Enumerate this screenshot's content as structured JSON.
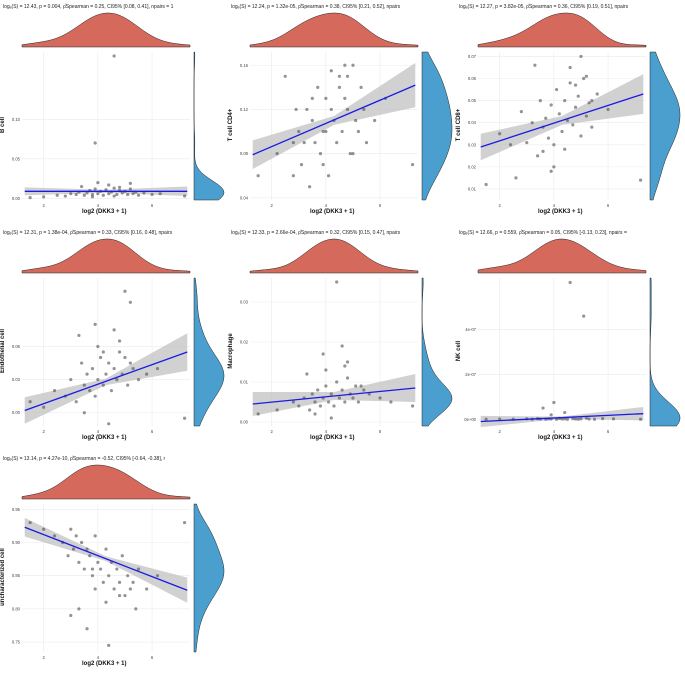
{
  "colors": {
    "density_top": "#d5695c",
    "density_right": "#4a9fcf",
    "regression_line": "#1a1ae6",
    "ci_band": "#bdbdbd",
    "points": "#4d4d4d",
    "grid": "#ebebeb"
  },
  "chart_data": [
    {
      "type": "scatter",
      "title": "logₑ(S) = 12.43, p = 0.004, ρ̂Spearman = 0.25, CI95% [0.08, 0.41], npairs = 1",
      "xlabel": "log2 (DKK3 + 1)",
      "ylabel": "B cell",
      "xlim": [
        1.2,
        7.4
      ],
      "ylim": [
        -0.002,
        0.185
      ],
      "xticks": [
        "2",
        "4",
        "6"
      ],
      "xtick_values": [
        2,
        4,
        6
      ],
      "yticks": [
        "0.00",
        "0.05",
        "0.10"
      ],
      "ytick_values": [
        0,
        0.05,
        0.1
      ],
      "fit": {
        "x": [
          1.3,
          7.3
        ],
        "y": [
          0.009,
          0.009
        ]
      },
      "band": {
        "x": [
          1.3,
          4.3,
          7.3
        ],
        "upper": [
          0.014,
          0.011,
          0.015
        ],
        "lower": [
          0.004,
          0.007,
          0.003
        ]
      },
      "points": {
        "x": [
          4.6,
          3.9,
          1.5,
          2.0,
          2.5,
          2.8,
          3.0,
          3.2,
          3.3,
          3.5,
          3.6,
          3.7,
          3.8,
          3.9,
          4.0,
          4.1,
          4.2,
          4.3,
          4.4,
          4.5,
          4.6,
          4.7,
          4.8,
          4.9,
          5.0,
          5.1,
          5.2,
          5.3,
          5.4,
          5.5,
          5.7,
          6.0,
          6.3,
          7.2,
          3.4,
          4.0,
          4.4,
          4.8,
          5.2,
          3.8,
          4.6
        ],
        "y": [
          0.18,
          0.07,
          0.001,
          0.002,
          0.004,
          0.003,
          0.006,
          0.005,
          0.008,
          0.004,
          0.007,
          0.01,
          0.005,
          0.012,
          0.006,
          0.009,
          0.004,
          0.011,
          0.006,
          0.008,
          0.013,
          0.005,
          0.01,
          0.007,
          0.009,
          0.005,
          0.012,
          0.006,
          0.008,
          0.004,
          0.007,
          0.005,
          0.006,
          0.003,
          0.015,
          0.02,
          0.017,
          0.014,
          0.019,
          0.002,
          0.003
        ]
      }
    },
    {
      "type": "scatter",
      "title": "logₑ(S) = 12.24, p = 1.32e-05, ρ̂Spearman = 0.38, CI95% [0.21, 0.52], npairs",
      "xlabel": "log2 (DKK3 + 1)",
      "ylabel": "T cell CD4+",
      "xlim": [
        1.2,
        7.4
      ],
      "ylim": [
        0.038,
        0.172
      ],
      "xticks": [
        "2",
        "4",
        "6"
      ],
      "xtick_values": [
        2,
        4,
        6
      ],
      "yticks": [
        "0.04",
        "0.08",
        "0.12",
        "0.16"
      ],
      "ytick_values": [
        0.04,
        0.08,
        0.12,
        0.16
      ],
      "fit": {
        "x": [
          1.3,
          7.3
        ],
        "y": [
          0.079,
          0.142
        ]
      },
      "band": {
        "x": [
          1.3,
          4.3,
          7.3
        ],
        "upper": [
          0.092,
          0.114,
          0.162
        ],
        "lower": [
          0.066,
          0.106,
          0.122
        ]
      },
      "points": {
        "x": [
          1.5,
          2.2,
          2.5,
          2.8,
          3.0,
          3.1,
          3.3,
          3.4,
          3.5,
          3.6,
          3.7,
          3.8,
          3.9,
          4.0,
          4.1,
          4.2,
          4.3,
          4.4,
          4.5,
          4.6,
          4.7,
          4.8,
          4.9,
          5.0,
          5.1,
          5.2,
          5.3,
          5.4,
          5.5,
          5.8,
          6.2,
          7.2,
          2.8,
          3.5,
          4.2,
          4.8,
          5.0,
          3.9,
          4.5,
          3.2,
          4.0,
          4.7,
          2.9
        ],
        "y": [
          0.06,
          0.08,
          0.15,
          0.09,
          0.1,
          0.07,
          0.12,
          0.05,
          0.11,
          0.09,
          0.14,
          0.08,
          0.1,
          0.13,
          0.06,
          0.12,
          0.11,
          0.09,
          0.15,
          0.1,
          0.13,
          0.12,
          0.08,
          0.16,
          0.11,
          0.1,
          0.14,
          0.12,
          0.09,
          0.11,
          0.13,
          0.07,
          0.06,
          0.13,
          0.155,
          0.15,
          0.08,
          0.07,
          0.14,
          0.09,
          0.1,
          0.16,
          0.12
        ]
      }
    },
    {
      "type": "scatter",
      "title": "logₑ(S) = 12.27, p = 3.82e-05, ρ̂Spearman = 0.36, CI95% [0.19, 0.51], npairs",
      "xlabel": "log2 (DKK3 + 1)",
      "ylabel": "T cell CD8+",
      "xlim": [
        1.2,
        7.4
      ],
      "ylim": [
        0.005,
        0.072
      ],
      "xticks": [
        "2",
        "4",
        "6"
      ],
      "xtick_values": [
        2,
        4,
        6
      ],
      "yticks": [
        "0.01",
        "0.02",
        "0.03",
        "0.04",
        "0.05",
        "0.06",
        "0.07"
      ],
      "ytick_values": [
        0.01,
        0.02,
        0.03,
        0.04,
        0.05,
        0.06,
        0.07
      ],
      "fit": {
        "x": [
          1.3,
          7.3
        ],
        "y": [
          0.029,
          0.053
        ]
      },
      "band": {
        "x": [
          1.3,
          4.3,
          7.3
        ],
        "upper": [
          0.035,
          0.043,
          0.062
        ],
        "lower": [
          0.023,
          0.039,
          0.044
        ]
      },
      "points": {
        "x": [
          1.5,
          2.0,
          2.4,
          2.8,
          3.0,
          3.2,
          3.4,
          3.5,
          3.6,
          3.7,
          3.8,
          3.9,
          4.0,
          4.1,
          4.2,
          4.3,
          4.4,
          4.5,
          4.6,
          4.7,
          4.8,
          4.9,
          5.0,
          5.1,
          5.2,
          5.3,
          5.4,
          5.6,
          6.0,
          7.2,
          3.3,
          4.0,
          4.6,
          5.2,
          3.9,
          4.4,
          5.0,
          2.6,
          3.6,
          4.8,
          5.4
        ],
        "y": [
          0.012,
          0.035,
          0.03,
          0.045,
          0.031,
          0.04,
          0.025,
          0.05,
          0.038,
          0.042,
          0.033,
          0.048,
          0.03,
          0.055,
          0.044,
          0.036,
          0.05,
          0.041,
          0.058,
          0.039,
          0.047,
          0.052,
          0.034,
          0.06,
          0.043,
          0.049,
          0.038,
          0.053,
          0.046,
          0.014,
          0.066,
          0.02,
          0.065,
          0.061,
          0.018,
          0.028,
          0.07,
          0.015,
          0.027,
          0.057,
          0.05
        ]
      }
    },
    {
      "type": "scatter",
      "title": "logₑ(S) = 12.31, p = 1.38e-04, ρ̂Spearman = 0.33, CI95% [0.16, 0.48], npairs",
      "xlabel": "log2 (DKK3 + 1)",
      "ylabel": "Endothelial cell",
      "xlim": [
        1.2,
        7.4
      ],
      "ylim": [
        -0.012,
        0.122
      ],
      "xticks": [
        "2",
        "4",
        "6"
      ],
      "xtick_values": [
        2,
        4,
        6
      ],
      "yticks": [
        "0.00",
        "0.03",
        "0.06"
      ],
      "ytick_values": [
        0,
        0.03,
        0.06
      ],
      "fit": {
        "x": [
          1.3,
          7.3
        ],
        "y": [
          0.002,
          0.055
        ]
      },
      "band": {
        "x": [
          1.3,
          4.3,
          7.3
        ],
        "upper": [
          0.014,
          0.031,
          0.072
        ],
        "lower": [
          -0.01,
          0.025,
          0.038
        ]
      },
      "points": {
        "x": [
          1.5,
          2.0,
          2.4,
          2.8,
          3.0,
          3.2,
          3.4,
          3.5,
          3.6,
          3.7,
          3.8,
          3.9,
          4.0,
          4.1,
          4.2,
          4.3,
          4.4,
          4.5,
          4.6,
          4.7,
          4.8,
          4.9,
          5.0,
          5.1,
          5.2,
          5.3,
          5.5,
          5.8,
          6.2,
          7.2,
          3.3,
          4.0,
          4.6,
          5.0,
          3.9,
          4.4,
          5.2,
          4.8,
          3.5,
          4.2
        ],
        "y": [
          0.01,
          0.005,
          0.02,
          0.015,
          0.03,
          0.01,
          0.045,
          0.025,
          0.035,
          0.02,
          0.04,
          0.015,
          0.03,
          0.05,
          0.025,
          0.035,
          0.045,
          0.02,
          0.04,
          0.03,
          0.055,
          0.035,
          0.05,
          0.025,
          0.045,
          0.04,
          0.03,
          0.035,
          0.04,
          -0.005,
          0.07,
          0.06,
          0.075,
          0.11,
          0.08,
          -0.01,
          0.1,
          0.065,
          0.0,
          0.055
        ]
      }
    },
    {
      "type": "scatter",
      "title": "logₑ(S) = 12.33, p = 2.66e-04, ρ̂Spearman = 0.32, CI95% [0.15, 0.47], npairs",
      "xlabel": "log2 (DKK3 + 1)",
      "ylabel": "Macrophage",
      "xlim": [
        1.2,
        7.4
      ],
      "ylim": [
        -0.001,
        0.036
      ],
      "xticks": [
        "2",
        "4",
        "6"
      ],
      "xtick_values": [
        2,
        4,
        6
      ],
      "yticks": [
        "0.00",
        "0.01",
        "0.02",
        "0.03"
      ],
      "ytick_values": [
        0,
        0.01,
        0.02,
        0.03
      ],
      "fit": {
        "x": [
          1.3,
          7.3
        ],
        "y": [
          0.0045,
          0.0085
        ]
      },
      "band": {
        "x": [
          1.3,
          4.3,
          7.3
        ],
        "upper": [
          0.0075,
          0.0075,
          0.012
        ],
        "lower": [
          0.0015,
          0.0055,
          0.005
        ]
      },
      "points": {
        "x": [
          4.4,
          4.6,
          3.9,
          1.5,
          2.2,
          2.8,
          3.0,
          3.2,
          3.4,
          3.5,
          3.6,
          3.7,
          3.8,
          3.9,
          4.0,
          4.1,
          4.2,
          4.3,
          4.4,
          4.5,
          4.6,
          4.7,
          4.8,
          4.9,
          5.0,
          5.1,
          5.2,
          5.4,
          5.6,
          6.0,
          6.4,
          7.2,
          3.3,
          4.0,
          4.8,
          5.3,
          4.2,
          3.6,
          4.7
        ],
        "y": [
          0.035,
          0.019,
          0.017,
          0.002,
          0.003,
          0.005,
          0.004,
          0.006,
          0.003,
          0.007,
          0.005,
          0.008,
          0.004,
          0.006,
          0.009,
          0.005,
          0.007,
          0.004,
          0.01,
          0.006,
          0.008,
          0.005,
          0.011,
          0.007,
          0.006,
          0.009,
          0.005,
          0.008,
          0.007,
          0.006,
          0.005,
          0.004,
          0.012,
          0.013,
          0.015,
          0.009,
          0.001,
          0.002,
          0.014
        ]
      }
    },
    {
      "type": "scatter",
      "title": "logₑ(S) = 12.66, p = 0.559, ρ̂Spearman = 0.05, CI95% [-0.13, 0.23], npairs =",
      "xlabel": "log2 (DKK3 + 1)",
      "ylabel": "NK cell",
      "xlim": [
        1.2,
        7.4
      ],
      "ylim": [
        -3e-08,
        6.3e-07
      ],
      "xticks": [
        "2",
        "4",
        "6"
      ],
      "xtick_values": [
        2,
        4,
        6
      ],
      "yticks": [
        "0e+00",
        "2e-07",
        "4e-07"
      ],
      "ytick_values": [
        0,
        2e-07,
        4e-07
      ],
      "fit": {
        "x": [
          1.3,
          7.3
        ],
        "y": [
          -1e-08,
          2.5e-08
        ]
      },
      "band": {
        "x": [
          1.3,
          4.3,
          7.3
        ],
        "upper": [
          1.5e-08,
          1.2e-08,
          5.5e-08
        ],
        "lower": [
          -3.5e-08,
          2e-09,
          -5e-09
        ]
      },
      "points": {
        "x": [
          4.6,
          5.1,
          4.0,
          3.6,
          1.5,
          2.0,
          2.5,
          3.0,
          3.2,
          3.4,
          3.5,
          3.7,
          3.8,
          3.9,
          4.1,
          4.2,
          4.3,
          4.4,
          4.5,
          4.7,
          4.8,
          4.9,
          5.0,
          5.2,
          5.3,
          5.5,
          5.8,
          6.2,
          7.2,
          4.4,
          3.9
        ],
        "y": [
          6.1e-07,
          4.6e-07,
          7.5e-08,
          5e-08,
          0,
          1e-09,
          0,
          2e-09,
          0,
          3e-09,
          1e-09,
          0,
          2e-09,
          1e-09,
          0,
          4e-09,
          1e-09,
          2e-09,
          0,
          3e-09,
          1e-09,
          0,
          2e-09,
          5e-09,
          1e-09,
          0,
          3e-09,
          2e-09,
          0,
          3e-08,
          2e-08
        ]
      }
    },
    {
      "type": "scatter",
      "title": "logₑ(S) = 13.14, p = 4.27e-10, ρ̂Spearman = -0.52, CI95% [-0.64, -0.38], r",
      "xlabel": "log2 (DKK3 + 1)",
      "ylabel": "uncharacterized cell",
      "xlim": [
        1.2,
        7.4
      ],
      "ylim": [
        0.735,
        0.958
      ],
      "xticks": [
        "2",
        "4",
        "6"
      ],
      "xtick_values": [
        2,
        4,
        6
      ],
      "yticks": [
        "0.75",
        "0.80",
        "0.85",
        "0.90",
        "0.95"
      ],
      "ytick_values": [
        0.75,
        0.8,
        0.85,
        0.9,
        0.95
      ],
      "fit": {
        "x": [
          1.3,
          7.3
        ],
        "y": [
          0.923,
          0.828
        ]
      },
      "band": {
        "x": [
          1.3,
          4.3,
          7.3
        ],
        "upper": [
          0.937,
          0.879,
          0.847
        ],
        "lower": [
          0.909,
          0.872,
          0.809
        ]
      },
      "points": {
        "x": [
          1.5,
          2.0,
          2.4,
          2.7,
          2.9,
          3.0,
          3.1,
          3.2,
          3.3,
          3.4,
          3.5,
          3.6,
          3.7,
          3.8,
          3.9,
          4.0,
          4.1,
          4.2,
          4.3,
          4.4,
          4.5,
          4.6,
          4.7,
          4.8,
          4.9,
          5.0,
          5.1,
          5.2,
          5.3,
          5.5,
          5.8,
          6.2,
          7.2,
          3.3,
          3.6,
          3.9,
          4.3,
          3.0,
          4.4,
          3.8,
          4.8,
          5.4
        ],
        "y": [
          0.93,
          0.92,
          0.91,
          0.9,
          0.88,
          0.92,
          0.89,
          0.91,
          0.87,
          0.9,
          0.86,
          0.89,
          0.88,
          0.85,
          0.91,
          0.87,
          0.86,
          0.84,
          0.89,
          0.85,
          0.87,
          0.83,
          0.86,
          0.84,
          0.88,
          0.82,
          0.85,
          0.83,
          0.84,
          0.86,
          0.83,
          0.85,
          0.93,
          0.8,
          0.77,
          0.83,
          0.81,
          0.79,
          0.745,
          0.86,
          0.82,
          0.8
        ]
      }
    }
  ]
}
